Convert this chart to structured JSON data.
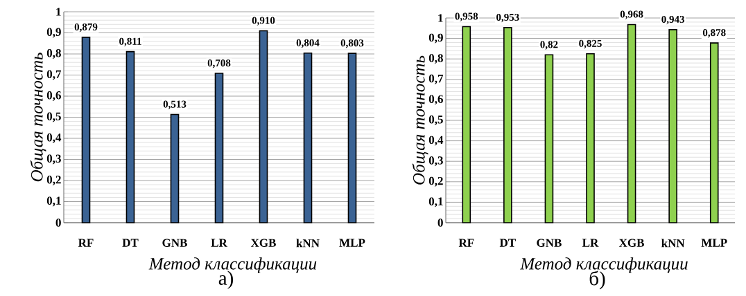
{
  "chart_data": [
    {
      "type": "bar",
      "xlabel": "Метод классификации",
      "ylabel": "Общая точность",
      "annotations": [
        "а)"
      ],
      "categories": [
        "RF",
        "DT",
        "GNB",
        "LR",
        "XGB",
        "kNN",
        "MLP"
      ],
      "values": [
        0.879,
        0.811,
        0.513,
        0.708,
        0.91,
        0.804,
        0.803
      ],
      "value_labels": [
        "0,879",
        "0,811",
        "0,513",
        "0,708",
        "0,910",
        "0,804",
        "0,803"
      ],
      "color": "#3b6394",
      "ylim": [
        0,
        1
      ],
      "yticks": [
        0,
        {
          "value": 0.1,
          "label": "0,1"
        },
        {
          "value": 0.2,
          "label": "0,2"
        },
        {
          "value": 0.3,
          "label": "0,3"
        },
        {
          "value": 0.4,
          "label": "0,4"
        },
        {
          "value": 0.5,
          "label": "0,5"
        },
        {
          "value": 0.6,
          "label": "0,6"
        },
        {
          "value": 0.7,
          "label": "0,7"
        },
        {
          "value": 0.8,
          "label": "0,8"
        },
        {
          "value": 0.9,
          "label": "0,9"
        },
        1
      ],
      "grid": "y"
    },
    {
      "type": "bar",
      "xlabel": "Метод классификации",
      "ylabel": "Общая точность",
      "annotations": [
        "б)"
      ],
      "categories": [
        "RF",
        "DT",
        "GNB",
        "LR",
        "XGB",
        "kNN",
        "MLP"
      ],
      "values": [
        0.958,
        0.953,
        0.82,
        0.825,
        0.968,
        0.943,
        0.878
      ],
      "value_labels": [
        "0,958",
        "0,953",
        "0,82",
        "0,825",
        "0,968",
        "0,943",
        "0,878"
      ],
      "color": "#8fd14f",
      "ylim": [
        0,
        1
      ],
      "yticks": [
        0,
        {
          "value": 0.1,
          "label": "0,1"
        },
        {
          "value": 0.2,
          "label": "0,2"
        },
        {
          "value": 0.3,
          "label": "0,3"
        },
        {
          "value": 0.4,
          "label": "0,4"
        },
        {
          "value": 0.5,
          "label": "0,5"
        },
        {
          "value": 0.6,
          "label": "0,6"
        },
        {
          "value": 0.7,
          "label": "0,7"
        },
        {
          "value": 0.8,
          "label": "0,8"
        },
        {
          "value": 0.9,
          "label": "0,9"
        },
        1
      ],
      "grid": "y"
    }
  ]
}
